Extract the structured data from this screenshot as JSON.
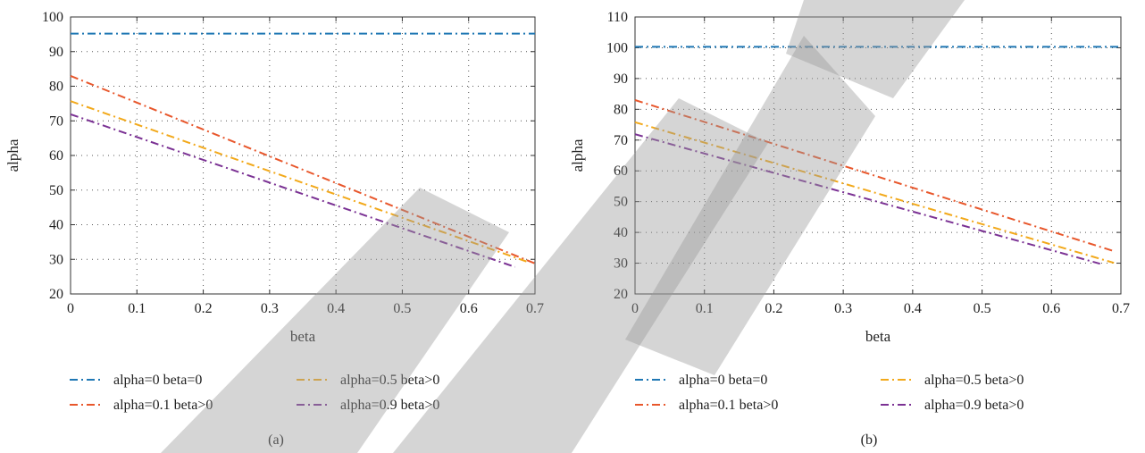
{
  "chart_data": [
    {
      "type": "line",
      "caption": "(a)",
      "xlabel": "beta",
      "ylabel": "alpha",
      "xlim": [
        0,
        0.7
      ],
      "ylim": [
        20,
        100
      ],
      "xticks": [
        "0",
        "0.1",
        "0.2",
        "0.3",
        "0.4",
        "0.5",
        "0.6",
        "0.7"
      ],
      "yticks": [
        "20",
        "30",
        "40",
        "50",
        "60",
        "70",
        "80",
        "90",
        "100"
      ],
      "grid": true,
      "legend_position": "bottom",
      "series": [
        {
          "name": "alpha=0 beta=0",
          "color": "#1f77b4",
          "dash": "dash-dot",
          "x": [
            0,
            0.7
          ],
          "y": [
            95.2,
            95.2
          ]
        },
        {
          "name": "alpha=0.1 beta>0",
          "color": "#e8572c",
          "dash": "dash-dot",
          "x": [
            0,
            0.7
          ],
          "y": [
            83,
            28.8
          ]
        },
        {
          "name": "alpha=0.5 beta>0",
          "color": "#f2a91b",
          "dash": "dash-dot",
          "x": [
            0,
            0.69
          ],
          "y": [
            75.7,
            29.2
          ]
        },
        {
          "name": "alpha=0.9 beta>0",
          "color": "#7b3294",
          "dash": "dash-dot",
          "x": [
            0,
            0.67
          ],
          "y": [
            71.9,
            27.8
          ]
        }
      ]
    },
    {
      "type": "line",
      "caption": "(b)",
      "xlabel": "beta",
      "ylabel": "alpha",
      "xlim": [
        0,
        0.7
      ],
      "ylim": [
        20,
        110
      ],
      "xticks": [
        "0",
        "0.1",
        "0.2",
        "0.3",
        "0.4",
        "0.5",
        "0.6",
        "0.7"
      ],
      "yticks": [
        "20",
        "30",
        "40",
        "50",
        "60",
        "70",
        "80",
        "90",
        "100",
        "110"
      ],
      "grid": true,
      "legend_position": "bottom",
      "series": [
        {
          "name": "alpha=0 beta=0",
          "color": "#1f77b4",
          "dash": "dash-dot",
          "x": [
            0,
            0.7
          ],
          "y": [
            100.3,
            100.3
          ]
        },
        {
          "name": "alpha=0.1 beta>0",
          "color": "#e8572c",
          "dash": "dash-dot",
          "x": [
            0,
            0.69
          ],
          "y": [
            83,
            33.9
          ]
        },
        {
          "name": "alpha=0.5 beta>0",
          "color": "#f2a91b",
          "dash": "dash-dot",
          "x": [
            0,
            0.69
          ],
          "y": [
            75.8,
            30.1
          ]
        },
        {
          "name": "alpha=0.9 beta>0",
          "color": "#7b3294",
          "dash": "dash-dot",
          "x": [
            0,
            0.67
          ],
          "y": [
            71.9,
            29.8
          ]
        }
      ]
    }
  ]
}
